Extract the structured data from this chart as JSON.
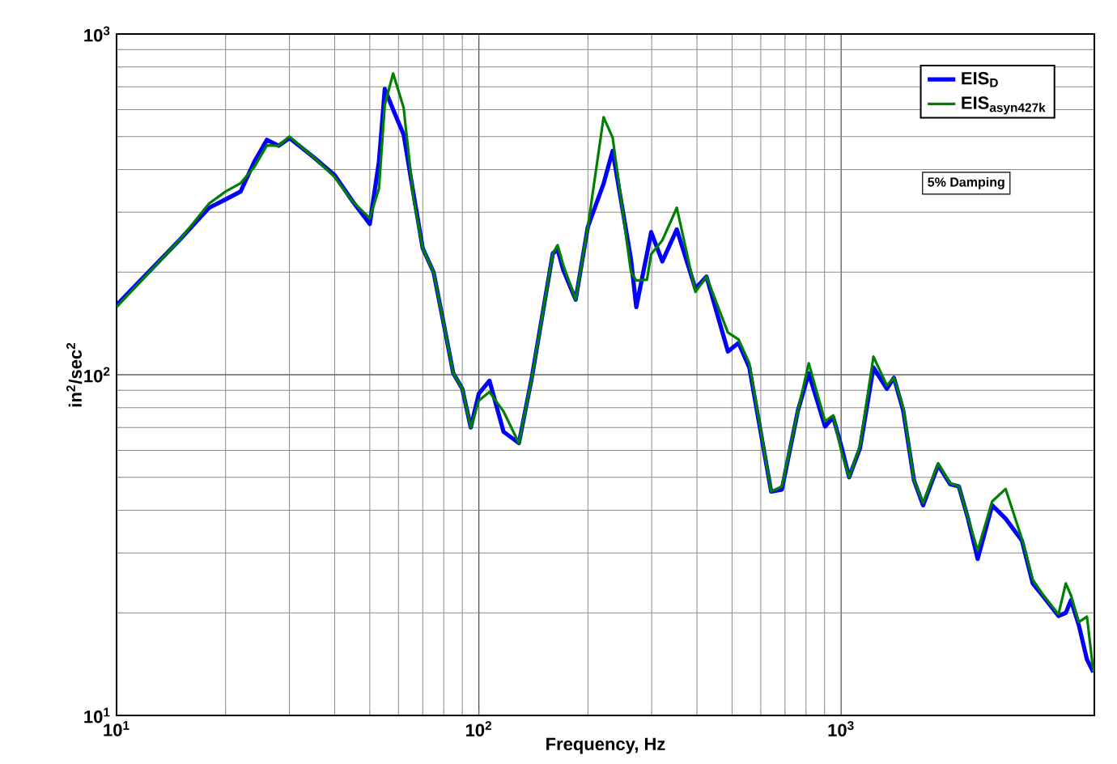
{
  "chart_data": {
    "type": "line",
    "xlabel": "Frequency, Hz",
    "ylabel": "in$^{2}$/sec$^{2}$",
    "log": "xy",
    "grid": true,
    "legend": "top right",
    "marker": "none",
    "line_style": "solid",
    "xlim": [
      10,
      5000
    ],
    "ylim": [
      10,
      1000
    ],
    "xticks": [
      {
        "value": 10,
        "label": "10$^{1}$"
      },
      {
        "value": 100,
        "label": "10$^{2}$"
      },
      {
        "value": 1000,
        "label": "10$^{3}$"
      }
    ],
    "yticks": [
      {
        "value": 10,
        "label": "10$^{1}$"
      },
      {
        "value": 100,
        "label": "10$^{2}$"
      },
      {
        "value": 1000,
        "label": "10$^{3}$"
      }
    ],
    "annotations": [
      "5% Damping"
    ],
    "x": [
      10,
      15,
      18,
      20,
      22,
      24,
      26,
      28,
      30,
      35,
      40,
      45,
      50,
      53,
      55,
      58,
      62,
      66,
      70,
      75,
      80,
      85,
      90,
      95,
      100,
      107,
      117,
      129,
      140,
      160,
      165,
      171,
      185,
      200,
      221,
      234,
      263,
      272,
      291,
      299,
      321,
      352,
      396,
      425,
      487,
      521,
      558,
      641,
      686,
      760,
      814,
      903,
      951,
      1000,
      1052,
      1128,
      1228,
      1337,
      1399,
      1484,
      1589,
      1684,
      1853,
      2000,
      2113,
      2240,
      2382,
      2612,
      2845,
      3155,
      3380,
      3620,
      3980,
      4170,
      4310,
      4530,
      4770,
      4970
    ],
    "series": [
      {
        "name": "EIS$_{D}$",
        "color": "#0000ff",
        "values": [
          160,
          250,
          309,
          327,
          345,
          422,
          489,
          470,
          495,
          435,
          385,
          321,
          277,
          422,
          690,
          600,
          507,
          340,
          235,
          200,
          141,
          101,
          91,
          70,
          88,
          96,
          68,
          63,
          98,
          227,
          233,
          203,
          166,
          272,
          364,
          454,
          218,
          158,
          226,
          262,
          215,
          267,
          179,
          194,
          117,
          124,
          105,
          45.4,
          46,
          78.5,
          101,
          70.5,
          75,
          62,
          50,
          61,
          105,
          91,
          98,
          78.5,
          49,
          41.4,
          54.3,
          47.7,
          47,
          37.8,
          28.8,
          41.4,
          37.8,
          32.6,
          24.4,
          22.3,
          19.6,
          20,
          21.8,
          18.4,
          14.6,
          13.4
        ]
      },
      {
        "name": "EIS$_{asyn427k}$",
        "color": "#008000",
        "values": [
          158,
          250,
          318,
          345,
          365,
          407,
          471,
          470,
          500,
          435,
          380,
          321,
          288,
          352,
          620,
          766,
          608,
          330,
          235,
          200,
          141,
          101,
          91,
          70,
          84,
          89,
          78,
          63,
          98,
          227,
          240,
          210,
          166,
          272,
          570,
          497,
          200,
          189,
          190,
          226,
          248,
          309,
          175,
          194,
          133,
          127,
          108,
          45.4,
          47,
          78.5,
          108,
          73,
          76,
          60,
          50,
          62,
          113,
          93,
          98,
          80,
          49,
          42,
          55,
          48,
          47,
          38,
          30.5,
          42.5,
          46.2,
          33,
          25,
          22.5,
          19.8,
          24.4,
          22.5,
          18.8,
          19.5,
          13.4
        ]
      }
    ]
  }
}
